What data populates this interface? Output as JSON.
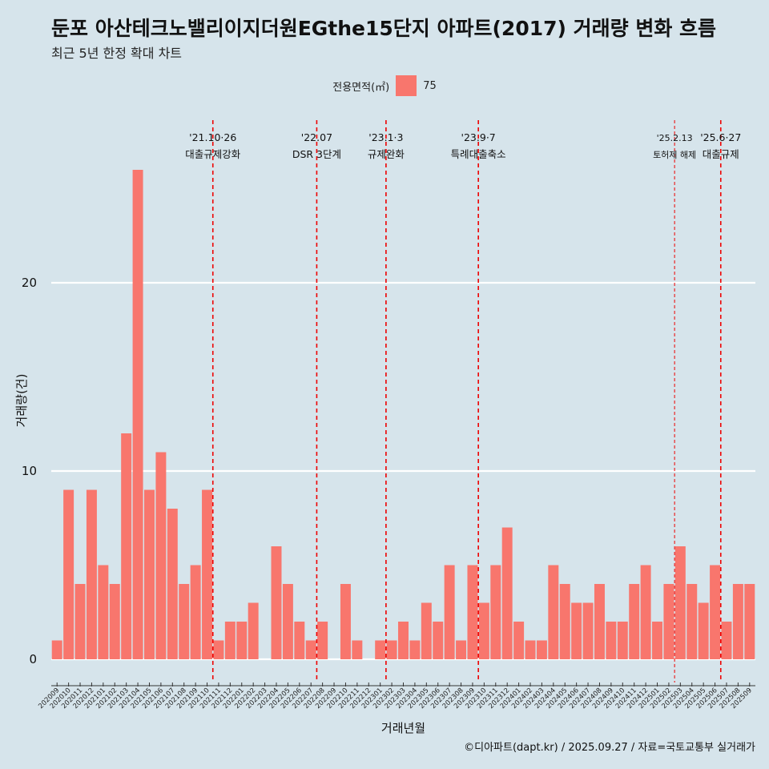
{
  "chart_data": {
    "type": "bar",
    "title": "둔포 아산테크노밸리이지더원EGthe15단지 아파트(2017) 거래량 변화 흐름",
    "subtitle": "최근 5년 한정 확대 차트",
    "xlabel": "거래년월",
    "ylabel": "거래량(건)",
    "ylim": [
      0,
      26
    ],
    "yticks": [
      0,
      10,
      20
    ],
    "grid": true,
    "legend": {
      "title": "전용면적(㎡)",
      "position": "top",
      "entries": [
        {
          "label": "75",
          "color": "#f8766d"
        }
      ]
    },
    "categories": [
      "202009",
      "202010",
      "202011",
      "202012",
      "202101",
      "202102",
      "202103",
      "202104",
      "202105",
      "202106",
      "202107",
      "202108",
      "202109",
      "202110",
      "202111",
      "202112",
      "202201",
      "202202",
      "202203",
      "202204",
      "202205",
      "202206",
      "202207",
      "202208",
      "202209",
      "202210",
      "202211",
      "202212",
      "202301",
      "202302",
      "202303",
      "202304",
      "202305",
      "202306",
      "202307",
      "202308",
      "202309",
      "202310",
      "202311",
      "202312",
      "202401",
      "202402",
      "202403",
      "202404",
      "202405",
      "202406",
      "202407",
      "202408",
      "202409",
      "202410",
      "202411",
      "202412",
      "202501",
      "202502",
      "202503",
      "202504",
      "202505",
      "202506",
      "202507",
      "202508",
      "202509"
    ],
    "series": [
      {
        "name": "75",
        "color": "#f8766d",
        "values": [
          1,
          9,
          4,
          9,
          5,
          4,
          12,
          26,
          9,
          11,
          8,
          4,
          5,
          9,
          1,
          2,
          2,
          3,
          0,
          6,
          4,
          2,
          1,
          2,
          0,
          4,
          1,
          0,
          1,
          1,
          2,
          1,
          3,
          2,
          5,
          1,
          5,
          3,
          5,
          7,
          2,
          1,
          1,
          5,
          4,
          3,
          3,
          4,
          2,
          2,
          4,
          5,
          2,
          4,
          6,
          4,
          3,
          5,
          2,
          4,
          4
        ]
      }
    ],
    "annotations": [
      {
        "category": "202110",
        "date": "'21.10·26",
        "label": "대출규제강화",
        "style": "dashed"
      },
      {
        "category": "202207",
        "date": "'22.07",
        "label": "DSR 3단계",
        "style": "dashed"
      },
      {
        "category": "202301",
        "date": "'23.1·3",
        "label": "규제완화",
        "style": "dashed"
      },
      {
        "category": "202309",
        "date": "'23.9·7",
        "label": "특례대출축소",
        "style": "dashed"
      },
      {
        "category": "202502",
        "date": "'25.2.13",
        "label": "토허제 해제",
        "style": "thin-dashed"
      },
      {
        "category": "202506",
        "date": "'25.6·27",
        "label": "대출규제",
        "style": "dashed"
      }
    ],
    "caption": "©디아파트(dapt.kr) / 2025.09.27 / 자료=국토교통부 실거래가"
  }
}
